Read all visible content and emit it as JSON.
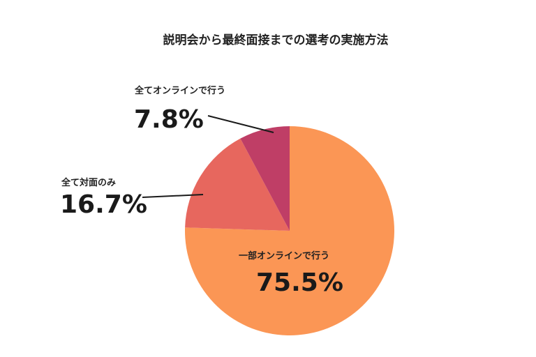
{
  "chart_data": {
    "type": "pie",
    "title": "説明会から最終面接までの選考の実施方法",
    "start_angle_deg": 0,
    "direction": "clockwise",
    "slices": [
      {
        "label": "一部オンラインで行う",
        "value": 75.5,
        "value_label": "75.5%",
        "color": "#FB9655"
      },
      {
        "label": "全て対面のみ",
        "value": 16.7,
        "value_label": "16.7%",
        "color": "#E7675E"
      },
      {
        "label": "全てオンラインで行う",
        "value": 7.8,
        "value_label": "7.8%",
        "color": "#BF3E66"
      }
    ]
  }
}
